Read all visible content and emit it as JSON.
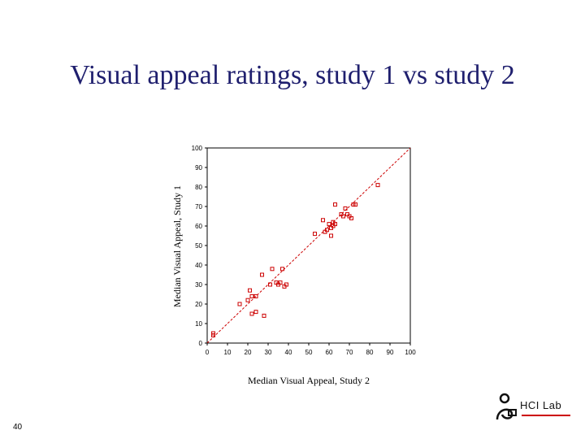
{
  "slide": {
    "title": "Visual appeal ratings, study 1 vs study 2",
    "number": "40",
    "logo_text": "HCI Lab"
  },
  "colors": {
    "title": "#1f1f6e",
    "points": "#cc0000",
    "diagonal": "#cc0000",
    "axis": "#000000"
  },
  "chart_data": {
    "type": "scatter",
    "xlabel": "Median Visual Appeal, Study 2",
    "ylabel": "Median Visual Appeal, Study 1",
    "xlim": [
      0,
      100
    ],
    "ylim": [
      0,
      100
    ],
    "xticks": [
      "0",
      "10",
      "20",
      "30",
      "40",
      "50",
      "60",
      "70",
      "80",
      "90",
      "100"
    ],
    "yticks": [
      "0",
      "10",
      "20",
      "30",
      "40",
      "50",
      "60",
      "70",
      "80",
      "90",
      "100"
    ],
    "grid": false,
    "reference_line": {
      "from": [
        0,
        0
      ],
      "to": [
        100,
        100
      ],
      "style": "dashed"
    },
    "points": [
      {
        "x": 3,
        "y": 4
      },
      {
        "x": 3,
        "y": 5
      },
      {
        "x": 16,
        "y": 20
      },
      {
        "x": 20,
        "y": 22
      },
      {
        "x": 21,
        "y": 27
      },
      {
        "x": 22,
        "y": 24
      },
      {
        "x": 22,
        "y": 15
      },
      {
        "x": 24,
        "y": 24
      },
      {
        "x": 24,
        "y": 16
      },
      {
        "x": 27,
        "y": 35
      },
      {
        "x": 28,
        "y": 14
      },
      {
        "x": 31,
        "y": 30
      },
      {
        "x": 32,
        "y": 38
      },
      {
        "x": 34,
        "y": 31
      },
      {
        "x": 35,
        "y": 30
      },
      {
        "x": 36,
        "y": 31
      },
      {
        "x": 37,
        "y": 38
      },
      {
        "x": 38,
        "y": 29
      },
      {
        "x": 39,
        "y": 30
      },
      {
        "x": 53,
        "y": 56
      },
      {
        "x": 57,
        "y": 63
      },
      {
        "x": 58,
        "y": 57
      },
      {
        "x": 59,
        "y": 58
      },
      {
        "x": 60,
        "y": 61
      },
      {
        "x": 61,
        "y": 55
      },
      {
        "x": 61,
        "y": 59
      },
      {
        "x": 62,
        "y": 62
      },
      {
        "x": 62,
        "y": 60
      },
      {
        "x": 63,
        "y": 61
      },
      {
        "x": 63,
        "y": 71
      },
      {
        "x": 66,
        "y": 66
      },
      {
        "x": 67,
        "y": 65
      },
      {
        "x": 68,
        "y": 69
      },
      {
        "x": 69,
        "y": 66
      },
      {
        "x": 70,
        "y": 65
      },
      {
        "x": 71,
        "y": 64
      },
      {
        "x": 72,
        "y": 71
      },
      {
        "x": 73,
        "y": 71
      },
      {
        "x": 84,
        "y": 81
      }
    ]
  }
}
